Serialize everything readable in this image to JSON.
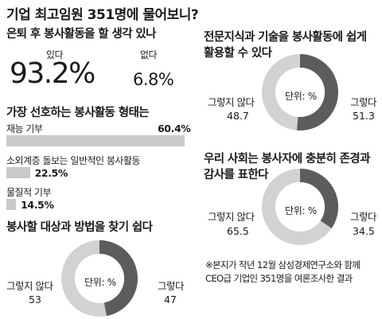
{
  "title": "기업 최고임원 351명에 물어보니?",
  "volunteer_intent": {
    "heading": "은퇴 후 봉사활동을 할 생각 있나",
    "yes_label": "있다",
    "yes_value": "93.2%",
    "no_label": "없다",
    "no_value": "6.8%"
  },
  "preferred_type": {
    "heading": "가장 선호하는 봉사활동 형태는",
    "items": [
      {
        "label": "재능 기부",
        "value": 60.4,
        "value_text": "60.4%"
      },
      {
        "label": "소외계층 돌보는 일반적인 봉사활동",
        "value": 22.5,
        "value_text": "22.5%"
      },
      {
        "label": "물질적 기부",
        "value": 14.5,
        "value_text": "14.5%"
      }
    ]
  },
  "donut_unit": "단위: %",
  "donuts": [
    {
      "heading": [
        "봉사할 대상과 방법을 찾기 쉽다"
      ],
      "no_label": "그렇지 않다",
      "no_value": "53",
      "yes_label": "그렇다",
      "yes_value": "47"
    },
    {
      "heading": [
        "전문지식과 기술을 봉사활동에 쉽게",
        "활용할 수 있다"
      ],
      "no_label": "그렇지 않다",
      "no_value": "48.7",
      "yes_label": "그렇다",
      "yes_value": "51.3"
    },
    {
      "heading": [
        "우리 사회는 봉사자에 충분히 존경과",
        "감사를 표한다"
      ],
      "no_label": "그렇지 않다",
      "no_value": "65.5",
      "yes_label": "그렇다",
      "yes_value": "34.5"
    }
  ],
  "note": [
    "※본지가 작년 12월 삼성경제연구소와 함께",
    "CEO급 기업인 351명을 여론조사한 결과"
  ],
  "colors": {
    "dark": "#5c5c5c",
    "light": "#d2d2d2",
    "bar": "#c9c9c9"
  },
  "chart_data": [
    {
      "type": "pie",
      "title": "은퇴 후 봉사활동을 할 생각 있나",
      "categories": [
        "있다",
        "없다"
      ],
      "values": [
        93.2,
        6.8
      ]
    },
    {
      "type": "bar",
      "title": "가장 선호하는 봉사활동 형태는",
      "categories": [
        "재능 기부",
        "소외계층 돌보는 일반적인 봉사활동",
        "물질적 기부"
      ],
      "values": [
        60.4,
        22.5,
        14.5
      ]
    },
    {
      "type": "pie",
      "title": "봉사할 대상과 방법을 찾기 쉽다",
      "categories": [
        "그렇다",
        "그렇지 않다"
      ],
      "values": [
        47,
        53
      ]
    },
    {
      "type": "pie",
      "title": "전문지식과 기술을 봉사활동에 쉽게 활용할 수 있다",
      "categories": [
        "그렇다",
        "그렇지 않다"
      ],
      "values": [
        51.3,
        48.7
      ]
    },
    {
      "type": "pie",
      "title": "우리 사회는 봉사자에 충분히 존경과 감사를 표한다",
      "categories": [
        "그렇다",
        "그렇지 않다"
      ],
      "values": [
        34.5,
        65.5
      ]
    }
  ]
}
